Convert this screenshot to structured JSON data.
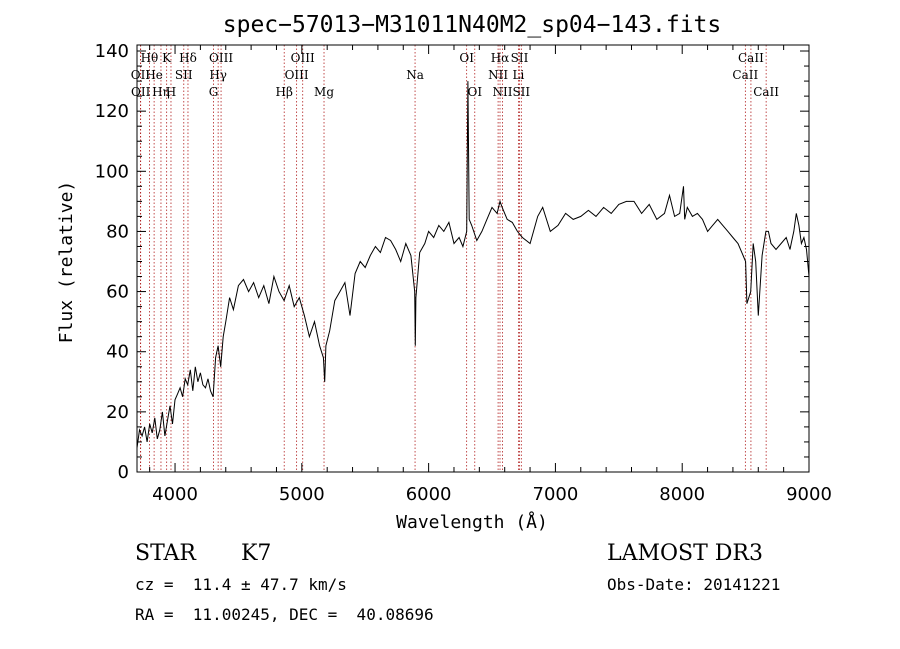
{
  "chart_data": {
    "type": "line",
    "title": "spec−57013−M31011N40M2_sp04−143.fits",
    "xlabel": "Wavelength (Å)",
    "ylabel": "Flux (relative)",
    "xlim": [
      3700,
      9000
    ],
    "ylim": [
      0,
      142
    ],
    "x_ticks": [
      4000,
      5000,
      6000,
      7000,
      8000,
      9000
    ],
    "y_ticks": [
      0,
      20,
      40,
      60,
      80,
      100,
      120,
      140
    ],
    "series": [
      {
        "name": "flux",
        "x": [
          3700,
          3720,
          3740,
          3760,
          3780,
          3800,
          3820,
          3840,
          3860,
          3880,
          3900,
          3920,
          3940,
          3960,
          3980,
          4000,
          4020,
          4040,
          4060,
          4080,
          4100,
          4120,
          4140,
          4160,
          4180,
          4200,
          4220,
          4240,
          4260,
          4280,
          4300,
          4320,
          4340,
          4360,
          4380,
          4400,
          4430,
          4460,
          4500,
          4540,
          4580,
          4620,
          4660,
          4700,
          4740,
          4780,
          4820,
          4860,
          4900,
          4940,
          4980,
          5020,
          5060,
          5100,
          5140,
          5170,
          5180,
          5190,
          5220,
          5260,
          5300,
          5340,
          5380,
          5420,
          5460,
          5500,
          5540,
          5580,
          5620,
          5660,
          5700,
          5740,
          5780,
          5820,
          5860,
          5890,
          5895,
          5900,
          5930,
          5970,
          6000,
          6040,
          6080,
          6120,
          6160,
          6200,
          6240,
          6270,
          6300,
          6310,
          6320,
          6340,
          6380,
          6420,
          6460,
          6500,
          6540,
          6563,
          6580,
          6620,
          6660,
          6700,
          6740,
          6800,
          6860,
          6900,
          6960,
          7020,
          7080,
          7140,
          7200,
          7260,
          7320,
          7380,
          7440,
          7500,
          7560,
          7620,
          7680,
          7740,
          7800,
          7860,
          7900,
          7940,
          7980,
          8010,
          8020,
          8040,
          8080,
          8120,
          8160,
          8200,
          8240,
          8280,
          8320,
          8360,
          8400,
          8440,
          8480,
          8500,
          8510,
          8540,
          8560,
          8580,
          8600,
          8630,
          8660,
          8680,
          8700,
          8740,
          8780,
          8820,
          8850,
          8860,
          8880,
          8900,
          8920,
          8940,
          8960,
          8980,
          9000
        ],
        "y": [
          8,
          14,
          12,
          15,
          10,
          16,
          13,
          18,
          11,
          14,
          20,
          12,
          17,
          22,
          16,
          24,
          26,
          28,
          25,
          31,
          29,
          34,
          27,
          35,
          30,
          33,
          29,
          28,
          31,
          27,
          25,
          38,
          42,
          35,
          45,
          50,
          58,
          54,
          62,
          64,
          60,
          63,
          58,
          62,
          56,
          65,
          60,
          57,
          62,
          55,
          58,
          52,
          45,
          50,
          42,
          38,
          30,
          42,
          47,
          57,
          60,
          63,
          52,
          66,
          70,
          68,
          72,
          75,
          73,
          78,
          77,
          74,
          70,
          76,
          72,
          60,
          42,
          58,
          73,
          76,
          80,
          78,
          82,
          80,
          83,
          76,
          78,
          75,
          80,
          130,
          84,
          82,
          77,
          80,
          84,
          88,
          86,
          90,
          88,
          84,
          83,
          80,
          78,
          76,
          85,
          88,
          80,
          82,
          86,
          84,
          85,
          87,
          85,
          88,
          86,
          89,
          90,
          90,
          86,
          89,
          84,
          86,
          92,
          85,
          86,
          95,
          84,
          88,
          85,
          86,
          84,
          80,
          82,
          84,
          82,
          80,
          78,
          76,
          72,
          70,
          56,
          60,
          76,
          70,
          52,
          72,
          80,
          80,
          76,
          74,
          76,
          78,
          74,
          76,
          80,
          86,
          82,
          76,
          78,
          74,
          65
        ],
        "color": "#000000"
      }
    ],
    "line_markers": [
      {
        "label": "Hθ",
        "wavelength": 3798,
        "row": 1
      },
      {
        "label": "OII",
        "wavelength": 3727,
        "row": 2
      },
      {
        "label": "OII",
        "wavelength": 3729,
        "row": 3
      },
      {
        "label": "He",
        "wavelength": 3835,
        "row": 2
      },
      {
        "label": "Hη",
        "wavelength": 3889,
        "row": 3
      },
      {
        "label": "K",
        "wavelength": 3934,
        "row": 1
      },
      {
        "label": "H",
        "wavelength": 3968,
        "row": 3
      },
      {
        "label": "SII",
        "wavelength": 4069,
        "row": 2
      },
      {
        "label": "Hδ",
        "wavelength": 4102,
        "row": 1
      },
      {
        "label": "OIII",
        "wavelength": 4363,
        "row": 1
      },
      {
        "label": "Hγ",
        "wavelength": 4340,
        "row": 2
      },
      {
        "label": "G",
        "wavelength": 4304,
        "row": 3
      },
      {
        "label": "Hβ",
        "wavelength": 4861,
        "row": 3
      },
      {
        "label": "OIII",
        "wavelength": 4959,
        "row": 2
      },
      {
        "label": "OIII",
        "wavelength": 5007,
        "row": 1
      },
      {
        "label": "Mg",
        "wavelength": 5175,
        "row": 3
      },
      {
        "label": "Na",
        "wavelength": 5893,
        "row": 2
      },
      {
        "label": "OI",
        "wavelength": 6300,
        "row": 1
      },
      {
        "label": "OI",
        "wavelength": 6364,
        "row": 3
      },
      {
        "label": "Hα",
        "wavelength": 6563,
        "row": 1
      },
      {
        "label": "NII",
        "wavelength": 6548,
        "row": 2
      },
      {
        "label": "NII",
        "wavelength": 6583,
        "row": 3
      },
      {
        "label": "SII",
        "wavelength": 6717,
        "row": 1
      },
      {
        "label": "Li",
        "wavelength": 6708,
        "row": 2
      },
      {
        "label": "SII",
        "wavelength": 6731,
        "row": 3
      },
      {
        "label": "CaII",
        "wavelength": 8542,
        "row": 1
      },
      {
        "label": "CaII",
        "wavelength": 8498,
        "row": 2
      },
      {
        "label": "CaII",
        "wavelength": 8662,
        "row": 3
      }
    ],
    "grid": false
  },
  "info": {
    "object_class": "STAR",
    "subclass": "K7",
    "survey": "LAMOST DR3",
    "redshift_line": "cz =  11.4 ± 47.7 km/s",
    "obs_date_line": "Obs-Date: 20141221",
    "coords_line": "RA =  11.00245, DEC =  40.08696"
  },
  "colors": {
    "spectrum": "#000000",
    "marker_line": "#b22222",
    "axis": "#000000"
  }
}
